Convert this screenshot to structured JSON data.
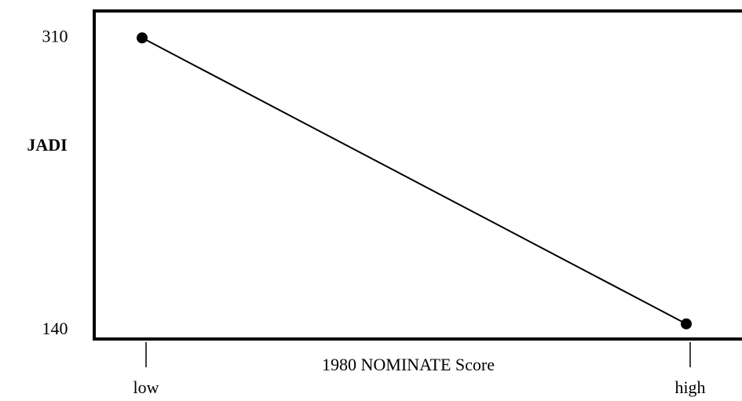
{
  "chart_data": {
    "type": "line",
    "y_label": "JADI",
    "x_label": "1980 NOMINATE Score",
    "categories": [
      "low",
      "high"
    ],
    "values": [
      310,
      140
    ],
    "color": "#000000",
    "ylim": [
      131,
      326
    ],
    "yticks": [
      140,
      310
    ]
  }
}
